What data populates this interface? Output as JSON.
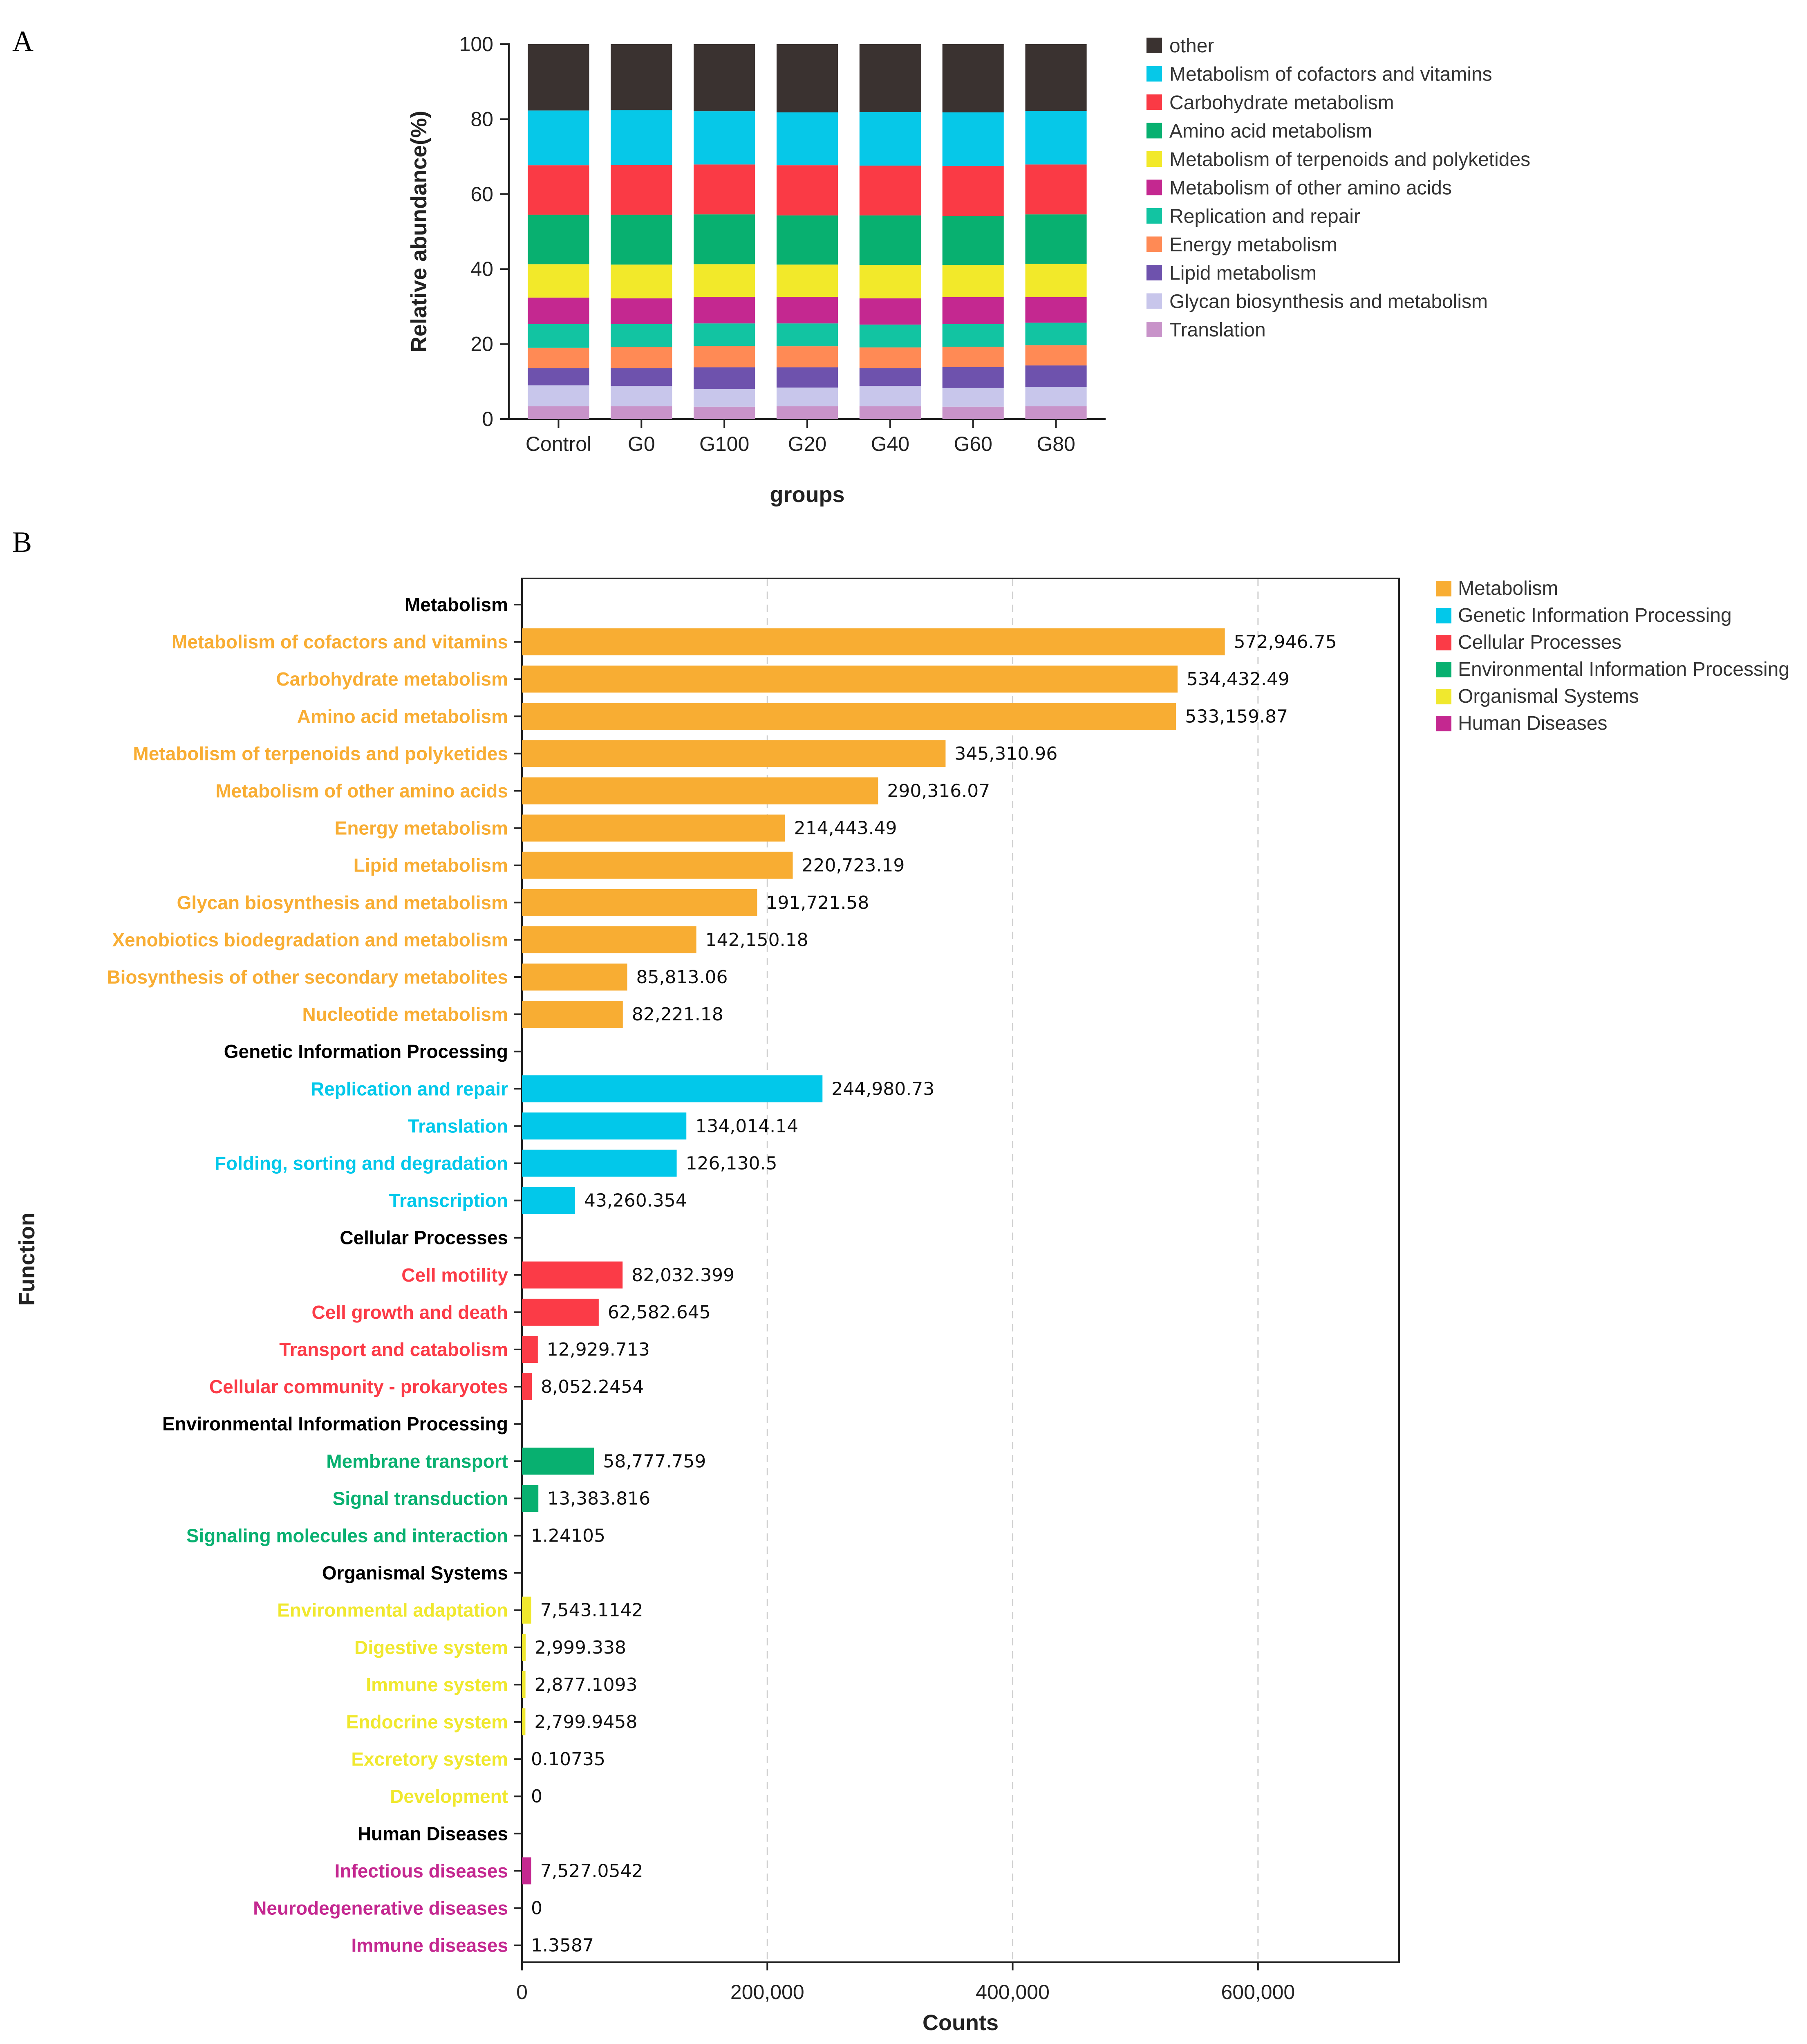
{
  "panel_a_label": "A",
  "panel_b_label": "B",
  "colors": {
    "other": "#3a3230",
    "Metabolism of cofactors and vitamins": "#06c8e8",
    "Carbohydrate metabolism": "#fa3a45",
    "Amino acid metabolism": "#08b070",
    "Metabolism of terpenoids and polyketides": "#f2e92a",
    "Metabolism of other amino acids": "#c42890",
    "Replication and repair": "#12c4a2",
    "Energy metabolism": "#ff8a55",
    "Lipid metabolism": "#6e52ad",
    "Glycan biosynthesis and metabolism": "#c8c6eb",
    "Translation": "#c893c9",
    "Metabolism": "#f8ad33",
    "Genetic Information Processing": "#02c8ea",
    "Cellular Processes": "#fb3b47",
    "Environmental Information Processing": "#08b070",
    "Organismal Systems": "#f0e82e",
    "Human Diseases": "#c42890"
  },
  "chart_data": [
    {
      "type": "bar",
      "stacked": true,
      "xlabel": "groups",
      "ylabel": "Relative abundance(%)",
      "ylim": [
        0,
        100
      ],
      "yticks": [
        0,
        20,
        40,
        60,
        80,
        100
      ],
      "categories": [
        "Control",
        "G0",
        "G100",
        "G20",
        "G40",
        "G60",
        "G80"
      ],
      "legend_position": "right",
      "legend_order": [
        "other",
        "Metabolism of cofactors and vitamins",
        "Carbohydrate metabolism",
        "Amino acid metabolism",
        "Metabolism of terpenoids and polyketides",
        "Metabolism of other amino acids",
        "Replication and repair",
        "Energy metabolism",
        "Lipid metabolism",
        "Glycan biosynthesis and metabolism",
        "Translation"
      ],
      "series": [
        {
          "name": "Translation",
          "values": [
            3.4,
            3.4,
            3.3,
            3.4,
            3.4,
            3.3,
            3.4
          ]
        },
        {
          "name": "Glycan biosynthesis and metabolism",
          "values": [
            5.6,
            5.4,
            4.7,
            5.0,
            5.4,
            5.0,
            5.2
          ]
        },
        {
          "name": "Lipid metabolism",
          "values": [
            4.6,
            4.8,
            5.8,
            5.4,
            4.8,
            5.6,
            5.7
          ]
        },
        {
          "name": "Energy metabolism",
          "values": [
            5.4,
            5.6,
            5.7,
            5.6,
            5.5,
            5.4,
            5.4
          ]
        },
        {
          "name": "Replication and repair",
          "values": [
            6.3,
            6.1,
            6.0,
            6.1,
            6.1,
            6.0,
            6.0
          ]
        },
        {
          "name": "Metabolism of other amino acids",
          "values": [
            7.1,
            6.9,
            7.1,
            7.1,
            7.0,
            7.2,
            6.8
          ]
        },
        {
          "name": "Metabolism of terpenoids and polyketides",
          "values": [
            8.9,
            9.0,
            8.7,
            8.6,
            8.9,
            8.6,
            8.9
          ]
        },
        {
          "name": "Amino acid metabolism",
          "values": [
            13.2,
            13.3,
            13.3,
            13.1,
            13.2,
            13.1,
            13.2
          ]
        },
        {
          "name": "Carbohydrate metabolism",
          "values": [
            13.2,
            13.3,
            13.3,
            13.4,
            13.3,
            13.3,
            13.3
          ]
        },
        {
          "name": "Metabolism of cofactors and vitamins",
          "values": [
            14.6,
            14.6,
            14.2,
            14.1,
            14.3,
            14.3,
            14.3
          ]
        },
        {
          "name": "other",
          "values": [
            17.7,
            17.6,
            17.9,
            18.2,
            18.1,
            18.2,
            17.8
          ]
        }
      ]
    },
    {
      "type": "bar",
      "orientation": "horizontal",
      "xlabel": "Counts",
      "ylabel": "Function",
      "xlim": [
        0,
        715000
      ],
      "xticks": [
        0,
        200000,
        400000,
        600000
      ],
      "xtick_labels": [
        "0",
        "200,000",
        "400,000",
        "600,000"
      ],
      "grid": "vertical dashed",
      "legend_position": "top-right",
      "legend": [
        "Metabolism",
        "Genetic Information Processing",
        "Cellular Processes",
        "Environmental Information Processing",
        "Organismal Systems",
        "Human Diseases"
      ],
      "groups": [
        {
          "name": "Metabolism",
          "items": [
            {
              "label": "Metabolism of cofactors and vitamins",
              "value": 572946.75,
              "value_label": "572,946.75"
            },
            {
              "label": "Carbohydrate metabolism",
              "value": 534432.49,
              "value_label": "534,432.49"
            },
            {
              "label": "Amino acid metabolism",
              "value": 533159.87,
              "value_label": "533,159.87"
            },
            {
              "label": "Metabolism of terpenoids and polyketides",
              "value": 345310.96,
              "value_label": "345,310.96"
            },
            {
              "label": "Metabolism of other amino acids",
              "value": 290316.07,
              "value_label": "290,316.07"
            },
            {
              "label": "Energy metabolism",
              "value": 214443.49,
              "value_label": "214,443.49"
            },
            {
              "label": "Lipid metabolism",
              "value": 220723.19,
              "value_label": "220,723.19"
            },
            {
              "label": "Glycan biosynthesis and metabolism",
              "value": 191721.58,
              "value_label": "191,721.58"
            },
            {
              "label": "Xenobiotics biodegradation and metabolism",
              "value": 142150.18,
              "value_label": "142,150.18"
            },
            {
              "label": "Biosynthesis of other secondary metabolites",
              "value": 85813.06,
              "value_label": "85,813.06"
            },
            {
              "label": "Nucleotide metabolism",
              "value": 82221.18,
              "value_label": "82,221.18"
            }
          ]
        },
        {
          "name": "Genetic Information Processing",
          "items": [
            {
              "label": "Replication and repair",
              "value": 244980.73,
              "value_label": "244,980.73"
            },
            {
              "label": "Translation",
              "value": 134014.14,
              "value_label": "134,014.14"
            },
            {
              "label": "Folding, sorting and degradation",
              "value": 126130.5,
              "value_label": "126,130.5"
            },
            {
              "label": "Transcription",
              "value": 43260.354,
              "value_label": "43,260.354"
            }
          ]
        },
        {
          "name": "Cellular Processes",
          "items": [
            {
              "label": "Cell motility",
              "value": 82032.399,
              "value_label": "82,032.399"
            },
            {
              "label": "Cell growth and death",
              "value": 62582.645,
              "value_label": "62,582.645"
            },
            {
              "label": "Transport and catabolism",
              "value": 12929.713,
              "value_label": "12,929.713"
            },
            {
              "label": "Cellular community - prokaryotes",
              "value": 8052.2454,
              "value_label": "8,052.2454"
            }
          ]
        },
        {
          "name": "Environmental Information Processing",
          "items": [
            {
              "label": "Membrane transport",
              "value": 58777.759,
              "value_label": "58,777.759"
            },
            {
              "label": "Signal transduction",
              "value": 13383.816,
              "value_label": "13,383.816"
            },
            {
              "label": "Signaling molecules and interaction",
              "value": 1.24105,
              "value_label": "1.24105"
            }
          ]
        },
        {
          "name": "Organismal Systems",
          "items": [
            {
              "label": "Environmental adaptation",
              "value": 7543.1142,
              "value_label": "7,543.1142"
            },
            {
              "label": "Digestive system",
              "value": 2999.338,
              "value_label": "2,999.338"
            },
            {
              "label": "Immune system",
              "value": 2877.1093,
              "value_label": "2,877.1093"
            },
            {
              "label": "Endocrine system",
              "value": 2799.9458,
              "value_label": "2,799.9458"
            },
            {
              "label": "Excretory system",
              "value": 0.10735,
              "value_label": "0.10735"
            },
            {
              "label": "Development",
              "value": 0,
              "value_label": "0"
            }
          ]
        },
        {
          "name": "Human Diseases",
          "items": [
            {
              "label": "Infectious diseases",
              "value": 7527.0542,
              "value_label": "7,527.0542"
            },
            {
              "label": "Neurodegenerative diseases",
              "value": 0,
              "value_label": "0"
            },
            {
              "label": "Immune diseases",
              "value": 1.3587,
              "value_label": "1.3587"
            }
          ]
        }
      ]
    }
  ]
}
